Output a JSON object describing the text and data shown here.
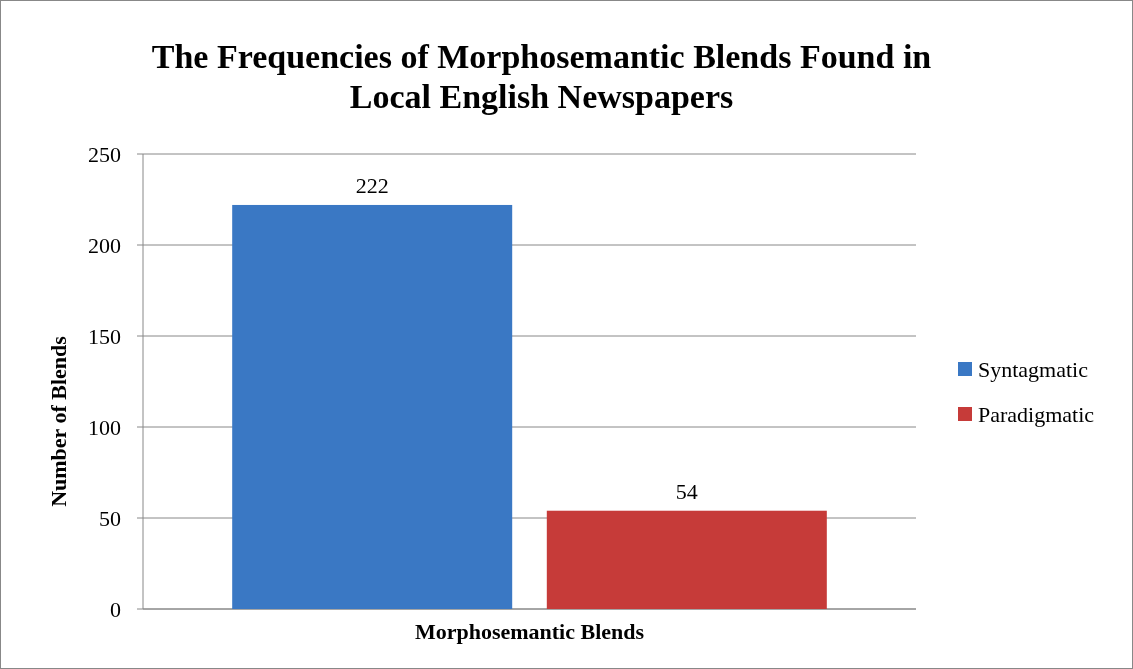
{
  "chart_data": {
    "type": "bar",
    "title": "The Frequencies of Morphosemantic Blends Found in Local English Newspapers",
    "xlabel": "Morphosemantic Blends",
    "ylabel": "Number of Blends",
    "categories": [
      null
    ],
    "series": [
      {
        "name": "Syntagmatic",
        "color": "#3a78c4",
        "values": [
          222
        ]
      },
      {
        "name": "Paradigmatic",
        "color": "#c63b39",
        "values": [
          54
        ]
      }
    ],
    "ylim": [
      0,
      250
    ],
    "yticks": [
      0,
      50,
      100,
      150,
      200,
      250
    ],
    "grid": "y",
    "legend": "right",
    "data_labels": true
  }
}
